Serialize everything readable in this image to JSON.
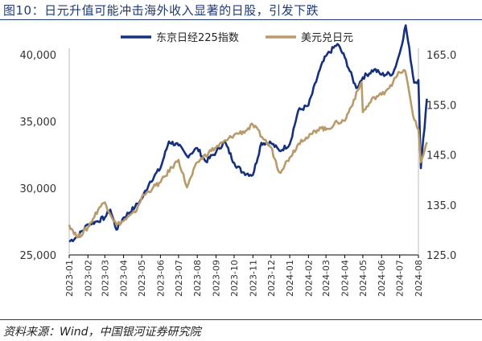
{
  "title": "图10：日元升值可能冲击海外收入显著的日股，引发下跌",
  "source": "资料来源：Wind，中国银河证券研究院",
  "chart_data": {
    "type": "line",
    "x_ticks": [
      "2023-01",
      "2023-02",
      "2023-03",
      "2023-04",
      "2023-05",
      "2023-06",
      "2023-07",
      "2023-08",
      "2023-09",
      "2023-10",
      "2023-11",
      "2023-12",
      "2024-01",
      "2024-02",
      "2024-03",
      "2024-04",
      "2024-05",
      "2024-06",
      "2024-07",
      "2024-08"
    ],
    "y_left": {
      "ticks": [
        "25,000",
        "30,000",
        "35,000",
        "40,000"
      ],
      "min": 25000,
      "max": 40000
    },
    "y_right": {
      "ticks": [
        "125.0",
        "135.0",
        "145.0",
        "155.0",
        "165.0"
      ],
      "min": 125,
      "max": 165
    },
    "legend_position": "top",
    "grid": false,
    "series": [
      {
        "name": "东京日经225指数",
        "axis": "left",
        "color": "#15317e",
        "points": [
          [
            "2023-01",
            26000
          ],
          [
            "2023-01-15",
            26400
          ],
          [
            "2023-02",
            27300
          ],
          [
            "2023-02-15",
            27500
          ],
          [
            "2023-03",
            27800
          ],
          [
            "2023-03-10",
            28400
          ],
          [
            "2023-03-20",
            26900
          ],
          [
            "2023-04",
            27800
          ],
          [
            "2023-04-20",
            28600
          ],
          [
            "2023-05",
            29200
          ],
          [
            "2023-05-15",
            30500
          ],
          [
            "2023-06",
            31500
          ],
          [
            "2023-06-15",
            33500
          ],
          [
            "2023-07",
            33200
          ],
          [
            "2023-07-15",
            32400
          ],
          [
            "2023-08",
            33000
          ],
          [
            "2023-08-15",
            32000
          ],
          [
            "2023-09",
            32700
          ],
          [
            "2023-09-15",
            33500
          ],
          [
            "2023-10",
            31900
          ],
          [
            "2023-10-15",
            31200
          ],
          [
            "2023-11",
            31000
          ],
          [
            "2023-11-15",
            33400
          ],
          [
            "2023-12",
            33400
          ],
          [
            "2023-12-15",
            32800
          ],
          [
            "2024-01",
            33300
          ],
          [
            "2024-01-15",
            35800
          ],
          [
            "2024-02",
            36200
          ],
          [
            "2024-02-20",
            38900
          ],
          [
            "2024-03",
            39900
          ],
          [
            "2024-03-20",
            40800
          ],
          [
            "2024-04",
            39800
          ],
          [
            "2024-04-20",
            37500
          ],
          [
            "2024-05",
            38300
          ],
          [
            "2024-05-20",
            38900
          ],
          [
            "2024-06",
            38500
          ],
          [
            "2024-06-20",
            38600
          ],
          [
            "2024-07",
            40100
          ],
          [
            "2024-07-11",
            42200
          ],
          [
            "2024-07-25",
            37900
          ],
          [
            "2024-08",
            38100
          ],
          [
            "2024-08-05",
            31500
          ],
          [
            "2024-08-15",
            36700
          ]
        ]
      },
      {
        "name": "美元兑日元",
        "axis": "right",
        "color": "#b99a6b",
        "points": [
          [
            "2023-01",
            131.0
          ],
          [
            "2023-01-15",
            128.5
          ],
          [
            "2023-02",
            130.5
          ],
          [
            "2023-02-20",
            134.5
          ],
          [
            "2023-03",
            135.5
          ],
          [
            "2023-03-20",
            131.0
          ],
          [
            "2023-04",
            131.8
          ],
          [
            "2023-04-20",
            133.5
          ],
          [
            "2023-05",
            136.5
          ],
          [
            "2023-05-20",
            138.5
          ],
          [
            "2023-06",
            139.5
          ],
          [
            "2023-06-20",
            142.5
          ],
          [
            "2023-07",
            144.0
          ],
          [
            "2023-07-15",
            138.5
          ],
          [
            "2023-08",
            143.5
          ],
          [
            "2023-08-20",
            145.5
          ],
          [
            "2023-09",
            146.5
          ],
          [
            "2023-09-20",
            148.0
          ],
          [
            "2023-10",
            149.0
          ],
          [
            "2023-10-20",
            149.8
          ],
          [
            "2023-11",
            151.0
          ],
          [
            "2023-11-20",
            148.0
          ],
          [
            "2023-12",
            146.5
          ],
          [
            "2023-12-15",
            141.5
          ],
          [
            "2024-01",
            144.5
          ],
          [
            "2024-01-20",
            148.0
          ],
          [
            "2024-02",
            148.5
          ],
          [
            "2024-02-20",
            150.5
          ],
          [
            "2024-03",
            150.0
          ],
          [
            "2024-03-20",
            151.5
          ],
          [
            "2024-04",
            151.8
          ],
          [
            "2024-04-29",
            159.5
          ],
          [
            "2024-05",
            153.5
          ],
          [
            "2024-05-20",
            156.5
          ],
          [
            "2024-06",
            157.0
          ],
          [
            "2024-06-20",
            159.5
          ],
          [
            "2024-07",
            161.5
          ],
          [
            "2024-07-10",
            161.8
          ],
          [
            "2024-07-25",
            152.0
          ],
          [
            "2024-08",
            150.0
          ],
          [
            "2024-08-05",
            143.5
          ],
          [
            "2024-08-15",
            147.5
          ]
        ]
      }
    ]
  }
}
